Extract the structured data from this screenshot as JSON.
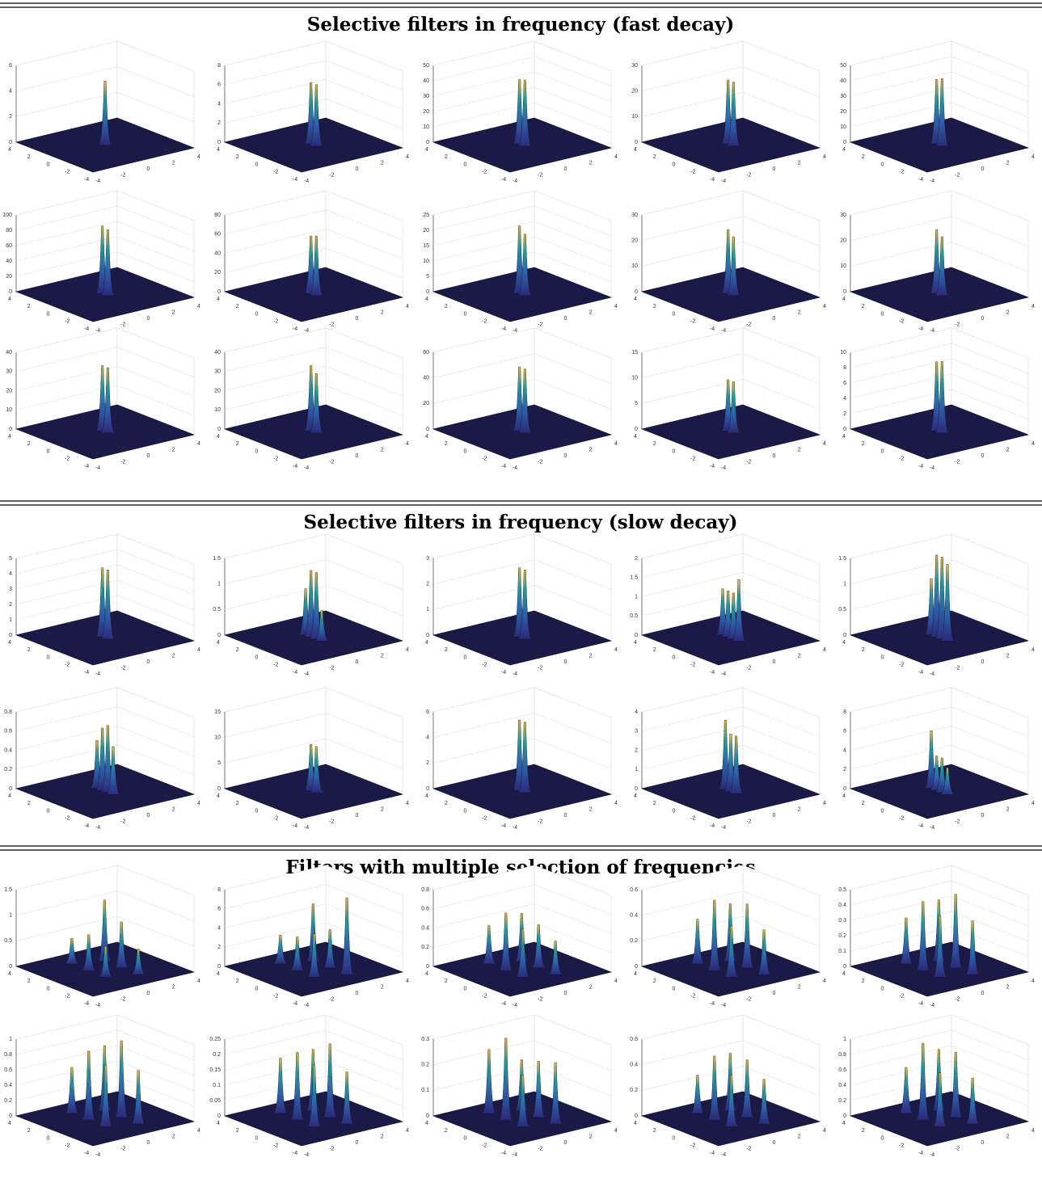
{
  "xyticks": [
    -4,
    -2,
    0,
    2,
    4
  ],
  "sections": [
    {
      "title": "Selective filters in frequency (fast decay)",
      "rows": [
        [
          {
            "type": "surface",
            "zlim": [
              0,
              6
            ],
            "zticks": [
              0,
              2,
              4,
              6
            ],
            "peaks": [
              5
            ]
          },
          {
            "type": "surface",
            "zlim": [
              0,
              8
            ],
            "zticks": [
              0,
              2,
              4,
              6,
              8
            ],
            "peaks": [
              6.4,
              6.4
            ]
          },
          {
            "type": "surface",
            "zlim": [
              0,
              50
            ],
            "zticks": [
              0,
              10,
              20,
              30,
              40,
              50
            ],
            "peaks": [
              42,
              43
            ]
          },
          {
            "type": "surface",
            "zlim": [
              0,
              30
            ],
            "zticks": [
              0,
              10,
              20,
              30
            ],
            "peaks": [
              25,
              25
            ]
          },
          {
            "type": "surface",
            "zlim": [
              0,
              50
            ],
            "zticks": [
              0,
              10,
              20,
              30,
              40,
              50
            ],
            "peaks": [
              42,
              44
            ]
          }
        ],
        [
          {
            "type": "surface",
            "zlim": [
              0,
              100
            ],
            "zticks": [
              0,
              20,
              40,
              60,
              80,
              100
            ],
            "peaks": [
              88,
              86
            ]
          },
          {
            "type": "surface",
            "zlim": [
              0,
              80
            ],
            "zticks": [
              0,
              20,
              40,
              60,
              80
            ],
            "peaks": [
              60,
              62
            ]
          },
          {
            "type": "surface",
            "zlim": [
              0,
              25
            ],
            "zticks": [
              0,
              5,
              10,
              15,
              20,
              25
            ],
            "peaks": [
              22,
              20
            ]
          },
          {
            "type": "surface",
            "zlim": [
              0,
              30
            ],
            "zticks": [
              0,
              10,
              20,
              30
            ],
            "peaks": [
              25,
              23
            ]
          },
          {
            "type": "surface",
            "zlim": [
              0,
              30
            ],
            "zticks": [
              0,
              10,
              20,
              30
            ],
            "peaks": [
              25,
              23
            ]
          }
        ],
        [
          {
            "type": "surface",
            "zlim": [
              0,
              40
            ],
            "zticks": [
              0,
              10,
              20,
              30,
              40
            ],
            "peaks": [
              34,
              34
            ]
          },
          {
            "type": "surface",
            "zlim": [
              0,
              40
            ],
            "zticks": [
              0,
              10,
              20,
              30,
              40
            ],
            "peaks": [
              34,
              31
            ]
          },
          {
            "type": "surface",
            "zlim": [
              0,
              60
            ],
            "zticks": [
              0,
              20,
              40,
              60
            ],
            "peaks": [
              50,
              50
            ]
          },
          {
            "type": "surface",
            "zlim": [
              0,
              15
            ],
            "zticks": [
              0,
              5,
              10,
              15
            ],
            "peaks": [
              10,
              10
            ]
          },
          {
            "type": "surface",
            "zlim": [
              0,
              10
            ],
            "zticks": [
              0,
              2,
              4,
              6,
              8,
              10
            ],
            "peaks": [
              9,
              9.3
            ]
          }
        ]
      ]
    },
    {
      "title": "Selective filters in frequency (slow decay)",
      "rows": [
        [
          {
            "type": "surface",
            "zlim": [
              0,
              5
            ],
            "zticks": [
              0,
              1,
              2,
              3,
              4,
              5
            ],
            "peaks": [
              4.5,
              4.5
            ]
          },
          {
            "type": "surface",
            "zlim": [
              0,
              1.5
            ],
            "zticks": [
              0,
              0.5,
              1,
              1.5
            ],
            "peaks": [
              0.9,
              1.3,
              1.3,
              0.6
            ]
          },
          {
            "type": "surface",
            "zlim": [
              0,
              3
            ],
            "zticks": [
              0,
              1,
              2,
              3
            ],
            "peaks": [
              2.7,
              2.7
            ]
          },
          {
            "type": "surface",
            "zlim": [
              0,
              2
            ],
            "zticks": [
              0,
              0.5,
              1,
              1.5,
              2
            ],
            "peaks": [
              1.2,
              1.2,
              1.2,
              1.6
            ]
          },
          {
            "type": "surface",
            "zlim": [
              0,
              1.5
            ],
            "zticks": [
              0,
              0.5,
              1,
              1.5
            ],
            "peaks": [
              1.1,
              1.6,
              1.6,
              1.5
            ]
          }
        ],
        [
          {
            "type": "surface",
            "zlim": [
              0,
              0.8
            ],
            "zticks": [
              0,
              0.2,
              0.4,
              0.6,
              0.8
            ],
            "peaks": [
              0.5,
              0.65,
              0.7,
              0.5
            ]
          },
          {
            "type": "surface",
            "zlim": [
              0,
              15
            ],
            "zticks": [
              0,
              5,
              10,
              15
            ],
            "peaks": [
              9,
              9
            ]
          },
          {
            "type": "surface",
            "zlim": [
              0,
              6
            ],
            "zticks": [
              0,
              2,
              4,
              6
            ],
            "peaks": [
              5.5,
              5.5
            ]
          },
          {
            "type": "surface",
            "zlim": [
              0,
              4
            ],
            "zticks": [
              0,
              1,
              2,
              3,
              4
            ],
            "peaks": [
              3.6,
              3,
              3
            ]
          },
          {
            "type": "surface",
            "zlim": [
              0,
              8
            ],
            "zticks": [
              0,
              2,
              4,
              6,
              8
            ],
            "peaks": [
              6,
              3.6,
              3.6,
              2.8
            ]
          }
        ]
      ]
    },
    {
      "title": "Filters with multiple selection of frequencies",
      "rows": [
        [
          {
            "type": "surface",
            "zlim": [
              0,
              1.5
            ],
            "zticks": [
              0,
              0.5,
              1,
              1.5
            ],
            "peaks": [
              0.5,
              1.2,
              0.7,
              0.9,
              0.6,
              0.5
            ]
          },
          {
            "type": "surface",
            "zlim": [
              0,
              8
            ],
            "zticks": [
              0,
              2,
              4,
              6,
              8
            ],
            "peaks": [
              3,
              6,
              3.5,
              4,
              4.5,
              8
            ]
          },
          {
            "type": "surface",
            "zlim": [
              0,
              0.8
            ],
            "zticks": [
              0,
              0.2,
              0.4,
              0.6,
              0.8
            ],
            "peaks": [
              0.4,
              0.5,
              0.6,
              0.45,
              0.5,
              0.35
            ]
          },
          {
            "type": "surface",
            "zlim": [
              0,
              0.6
            ],
            "zticks": [
              0,
              0.2,
              0.4,
              0.6
            ],
            "peaks": [
              0.35,
              0.45,
              0.55,
              0.5,
              0.4,
              0.35
            ]
          },
          {
            "type": "surface",
            "zlim": [
              0,
              0.5
            ],
            "zticks": [
              0,
              0.1,
              0.2,
              0.3,
              0.4,
              0.5
            ],
            "peaks": [
              0.3,
              0.4,
              0.45,
              0.48,
              0.4,
              0.35
            ]
          }
        ],
        [
          {
            "type": "surface",
            "zlim": [
              0,
              1
            ],
            "zticks": [
              0,
              0.2,
              0.4,
              0.6,
              0.8,
              1
            ],
            "peaks": [
              0.6,
              0.85,
              0.9,
              1,
              0.8,
              0.7
            ]
          },
          {
            "type": "surface",
            "zlim": [
              0,
              0.25
            ],
            "zticks": [
              0,
              0.05,
              0.1,
              0.15,
              0.2,
              0.25
            ],
            "peaks": [
              0.18,
              0.2,
              0.22,
              0.24,
              0.2,
              0.17
            ]
          },
          {
            "type": "surface",
            "zlim": [
              0,
              0.3
            ],
            "zticks": [
              0,
              0.1,
              0.2,
              0.3
            ],
            "peaks": [
              0.25,
              0.2,
              0.32,
              0.22,
              0.2,
              0.24
            ]
          },
          {
            "type": "surface",
            "zlim": [
              0,
              0.6
            ],
            "zticks": [
              0,
              0.2,
              0.4,
              0.6
            ],
            "peaks": [
              0.3,
              0.45,
              0.5,
              0.45,
              0.4,
              0.35
            ]
          },
          {
            "type": "surface",
            "zlim": [
              0,
              1
            ],
            "zticks": [
              0,
              0.2,
              0.4,
              0.6,
              0.8,
              1
            ],
            "peaks": [
              0.6,
              0.8,
              1,
              0.85,
              0.7,
              0.6
            ]
          }
        ]
      ]
    }
  ]
}
